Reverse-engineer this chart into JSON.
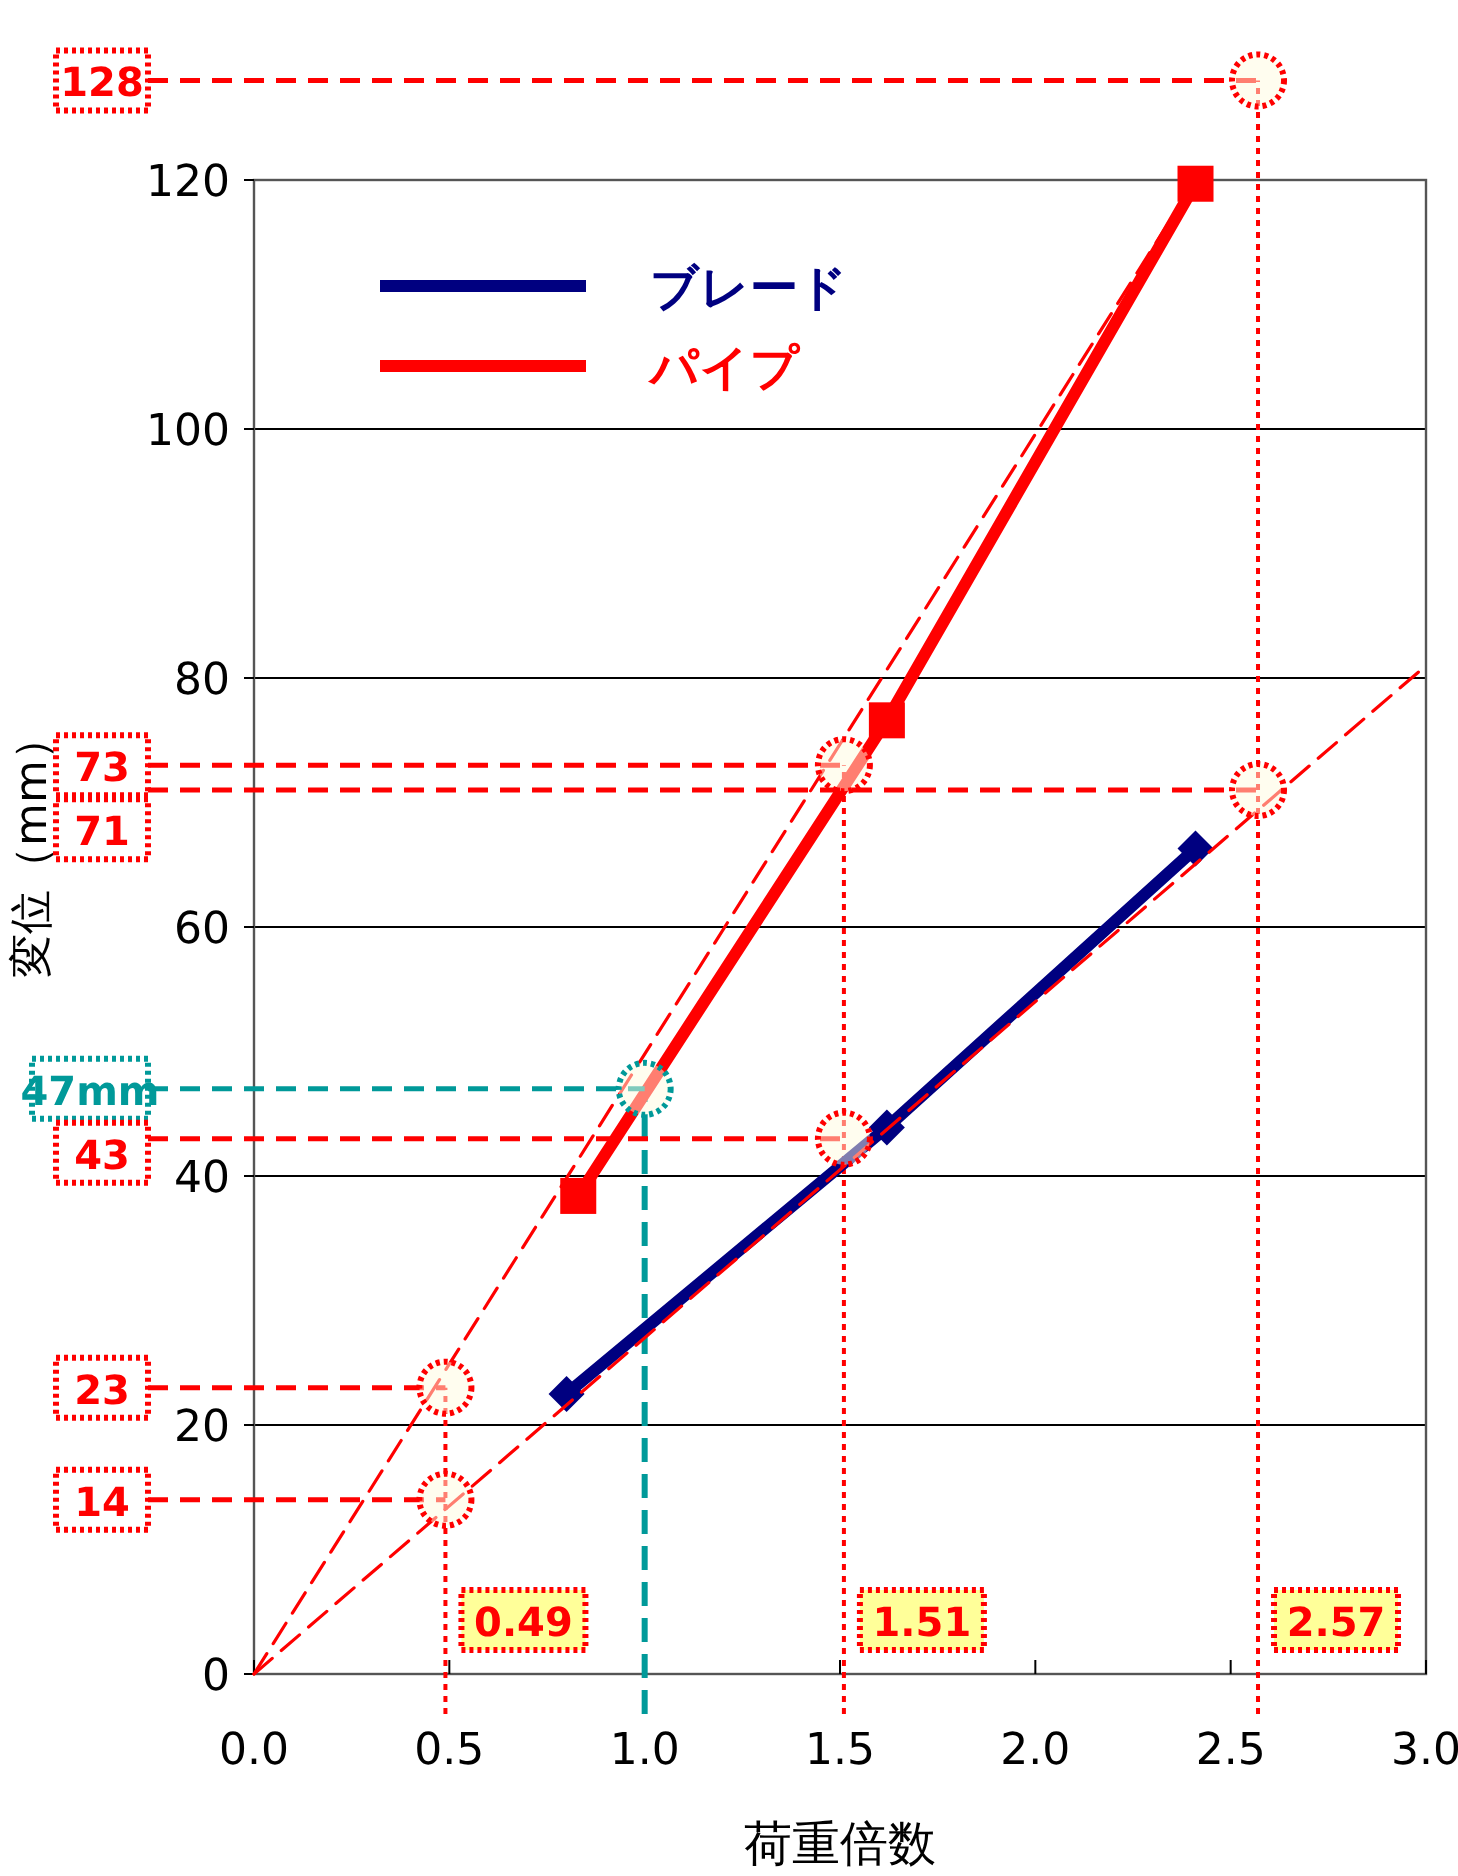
{
  "chart_data": {
    "type": "line",
    "xlabel": "荷重倍数",
    "ylabel": "変位（mm）",
    "xlim": [
      0,
      3
    ],
    "ylim": [
      0,
      120
    ],
    "xticks": [
      {
        "value": 0,
        "label": "0.0"
      },
      {
        "value": 0.5,
        "label": "0.5"
      },
      {
        "value": 1,
        "label": "1.0"
      },
      {
        "value": 1.5,
        "label": "1.5"
      },
      {
        "value": 2,
        "label": "2.0"
      },
      {
        "value": 2.5,
        "label": "2.5"
      },
      {
        "value": 3,
        "label": "3.0"
      }
    ],
    "yticks": [
      0,
      20,
      40,
      60,
      80,
      100,
      120
    ],
    "grid": "y",
    "legend": "top left",
    "series": [
      {
        "name": "ブレード",
        "color": "#000080",
        "marker": "diamond",
        "line_style": "solid",
        "x": [
          0.8,
          1.62,
          2.41
        ],
        "values": [
          22.5,
          43.9,
          66.3
        ]
      },
      {
        "name": "パイプ",
        "color": "#ff0000",
        "marker": "square",
        "line_style": "solid",
        "x": [
          0.83,
          1.62,
          2.41
        ],
        "values": [
          38.4,
          76.6,
          119.7
        ]
      },
      {
        "type": "line",
        "color": "#ff0000",
        "marker": "none",
        "line_style": "dashed",
        "x": [
          0,
          3
        ],
        "values": [
          0,
          81
        ]
      },
      {
        "type": "line",
        "color": "#ff0000",
        "marker": "none",
        "line_style": "dashed",
        "x": [
          0,
          2.41
        ],
        "values": [
          0,
          120
        ]
      }
    ],
    "ref_lines": [
      {
        "axis": "x",
        "value": 0.49,
        "label": "0.49",
        "color": "#ff0000",
        "line_style": "dotted"
      },
      {
        "axis": "x",
        "value": 1.51,
        "label": "1.51",
        "color": "#ff0000",
        "line_style": "dotted"
      },
      {
        "axis": "x",
        "value": 2.57,
        "label": "2.57",
        "color": "#ff0000",
        "line_style": "dotted"
      },
      {
        "axis": "x",
        "value": 1.0,
        "color": "#009999",
        "line_style": "dashed"
      }
    ],
    "annotations": [
      {
        "text": "128",
        "x": 2.57,
        "y": 128
      },
      {
        "text": "73",
        "x": 1.51,
        "y": 73
      },
      {
        "text": "71",
        "x": 2.57,
        "y": 71
      },
      {
        "text": "47mm",
        "x": 1.0,
        "y": 47
      },
      {
        "text": "43",
        "x": 1.51,
        "y": 43
      },
      {
        "text": "23",
        "x": 0.49,
        "y": 23
      },
      {
        "text": "14",
        "x": 0.49,
        "y": 14
      }
    ]
  }
}
